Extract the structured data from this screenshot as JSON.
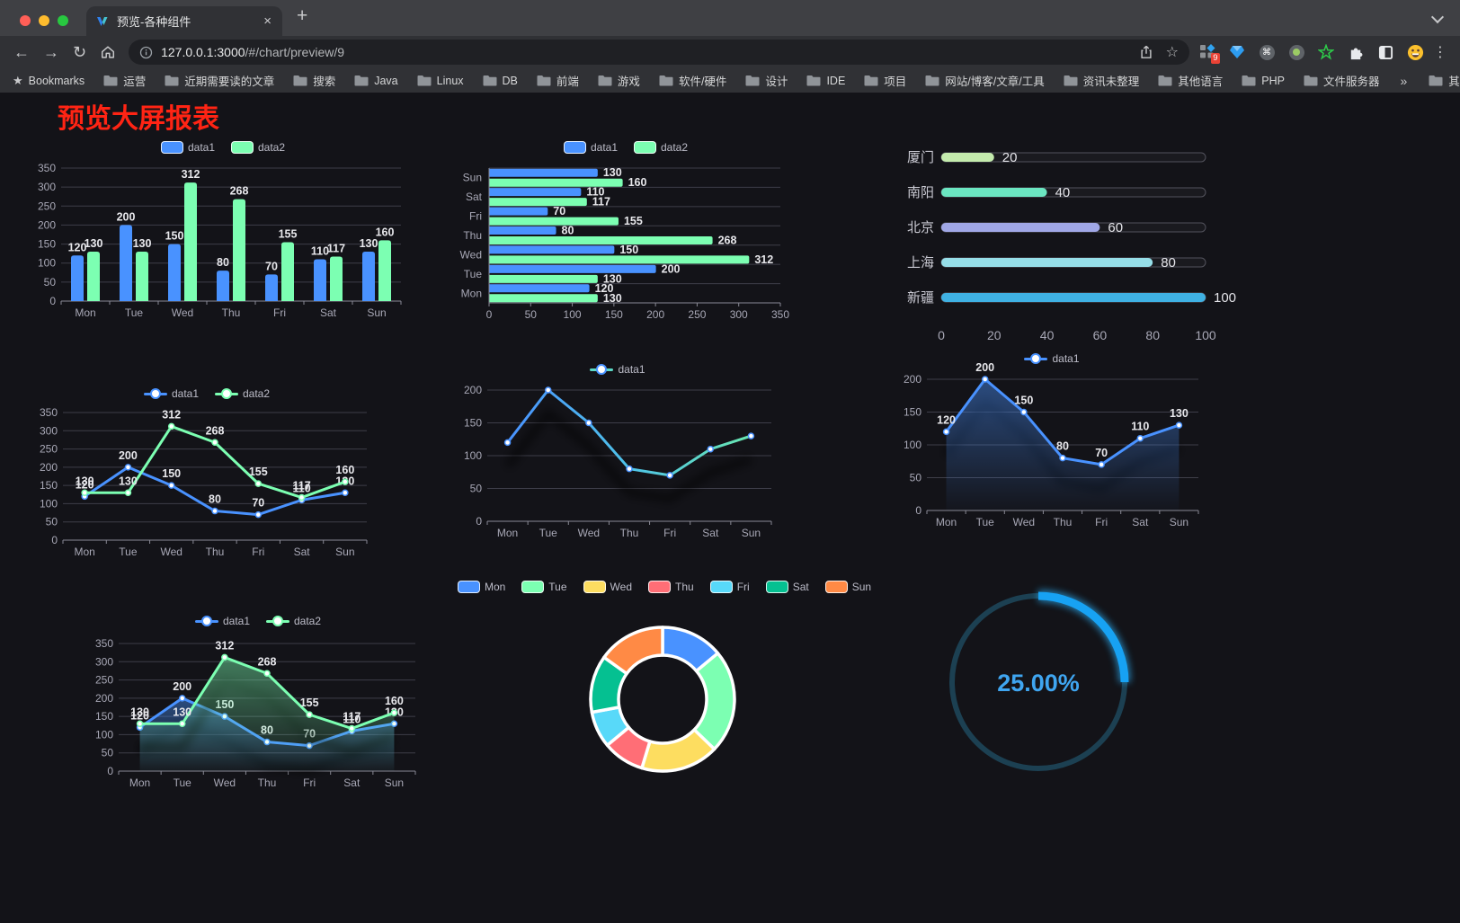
{
  "browser": {
    "tab_title": "预览-各种组件",
    "url_host": "127.0.0.1:3000",
    "url_path": "/#/chart/preview/9",
    "extensions_badge": "9"
  },
  "bookmarks": {
    "root_label": "Bookmarks",
    "folders": [
      "运营",
      "近期需要读的文章",
      "搜索",
      "Java",
      "Linux",
      "DB",
      "前端",
      "游戏",
      "软件/硬件",
      "设计",
      "IDE",
      "项目",
      "网站/博客/文章/工具",
      "资讯未整理",
      "其他语言",
      "PHP",
      "文件服务器"
    ],
    "overflow": "»",
    "other_label": "其他书签"
  },
  "page": {
    "title": "预览大屏报表",
    "title_color": "#ff2414"
  },
  "chart_data": [
    {
      "id": "grouped-bar",
      "type": "bar",
      "categories": [
        "Mon",
        "Tue",
        "Wed",
        "Thu",
        "Fri",
        "Sat",
        "Sun"
      ],
      "series": [
        {
          "name": "data1",
          "color": "#4992ff",
          "values": [
            120,
            200,
            150,
            80,
            70,
            110,
            130
          ]
        },
        {
          "name": "data2",
          "color": "#7cffb2",
          "values": [
            130,
            130,
            312,
            268,
            155,
            117,
            160
          ]
        }
      ],
      "ylim": [
        0,
        350
      ],
      "ytick": 50,
      "legend_position": "top",
      "grid": true
    },
    {
      "id": "horizontal-grouped-bar",
      "type": "bar",
      "orientation": "horizontal",
      "categories": [
        "Mon",
        "Tue",
        "Wed",
        "Thu",
        "Fri",
        "Sat",
        "Sun"
      ],
      "series": [
        {
          "name": "data1",
          "color": "#4992ff",
          "values": [
            120,
            200,
            150,
            80,
            70,
            110,
            130
          ]
        },
        {
          "name": "data2",
          "color": "#7cffb2",
          "values": [
            130,
            130,
            312,
            268,
            155,
            117,
            160
          ]
        }
      ],
      "xlim": [
        0,
        350
      ],
      "xtick": 50,
      "legend_position": "top",
      "grid": true
    },
    {
      "id": "progress-bars",
      "type": "bar",
      "orientation": "horizontal",
      "categories": [
        "厦门",
        "南阳",
        "北京",
        "上海",
        "新疆"
      ],
      "values": [
        20,
        40,
        60,
        80,
        100
      ],
      "colors": [
        "#c4ebad",
        "#6be6c1",
        "#a0a7e6",
        "#96dee8",
        "#3fb1e3"
      ],
      "xlim": [
        0,
        100
      ],
      "xtick": 20
    },
    {
      "id": "two-line",
      "type": "line",
      "categories": [
        "Mon",
        "Tue",
        "Wed",
        "Thu",
        "Fri",
        "Sat",
        "Sun"
      ],
      "series": [
        {
          "name": "data1",
          "color": "#4992ff",
          "values": [
            120,
            200,
            150,
            80,
            70,
            110,
            130
          ]
        },
        {
          "name": "data2",
          "color": "#7cffb2",
          "values": [
            130,
            130,
            312,
            268,
            155,
            117,
            160
          ]
        }
      ],
      "ylim": [
        0,
        350
      ],
      "ytick": 50,
      "labels": true,
      "shadow": false,
      "legend_position": "top"
    },
    {
      "id": "gradient-line",
      "type": "line",
      "categories": [
        "Mon",
        "Tue",
        "Wed",
        "Thu",
        "Fri",
        "Sat",
        "Sun"
      ],
      "series": [
        {
          "name": "data1",
          "color": "#4992ff",
          "gradient": [
            "#4992ff",
            "#4fc3e8",
            "#68e6b0"
          ],
          "values": [
            120,
            200,
            150,
            80,
            70,
            110,
            130
          ]
        }
      ],
      "ylim": [
        0,
        200
      ],
      "ytick": 50,
      "labels": false,
      "shadow": true,
      "legend_position": "top"
    },
    {
      "id": "area-line",
      "type": "area",
      "categories": [
        "Mon",
        "Tue",
        "Wed",
        "Thu",
        "Fri",
        "Sat",
        "Sun"
      ],
      "series": [
        {
          "name": "data1",
          "color": "#4992ff",
          "area": true,
          "values": [
            120,
            200,
            150,
            80,
            70,
            110,
            130
          ]
        }
      ],
      "ylim": [
        0,
        200
      ],
      "ytick": 50,
      "labels": true,
      "shadow": true,
      "legend_position": "top"
    },
    {
      "id": "two-area-line",
      "type": "area",
      "categories": [
        "Mon",
        "Tue",
        "Wed",
        "Thu",
        "Fri",
        "Sat",
        "Sun"
      ],
      "series": [
        {
          "name": "data1",
          "color": "#4992ff",
          "area": true,
          "values": [
            120,
            200,
            150,
            80,
            70,
            110,
            130
          ]
        },
        {
          "name": "data2",
          "color": "#7cffb2",
          "area": true,
          "values": [
            130,
            130,
            312,
            268,
            155,
            117,
            160
          ]
        }
      ],
      "ylim": [
        0,
        350
      ],
      "ytick": 50,
      "labels": true,
      "shadow": true,
      "legend_position": "top"
    },
    {
      "id": "donut-pie",
      "type": "pie",
      "categories": [
        "Mon",
        "Tue",
        "Wed",
        "Thu",
        "Fri",
        "Sat",
        "Sun"
      ],
      "values": [
        120,
        200,
        150,
        80,
        70,
        110,
        130
      ],
      "colors": [
        "#4992ff",
        "#7cffb2",
        "#fddd60",
        "#ff6e76",
        "#58d9f9",
        "#05c091",
        "#ff8a45"
      ],
      "legend_position": "top"
    },
    {
      "id": "gauge",
      "type": "gauge",
      "value": 25,
      "max": 100,
      "label": "25.00%",
      "color": "#17a2f3",
      "track_color": "#1c4052",
      "text_color": "#3fa5f0"
    }
  ]
}
